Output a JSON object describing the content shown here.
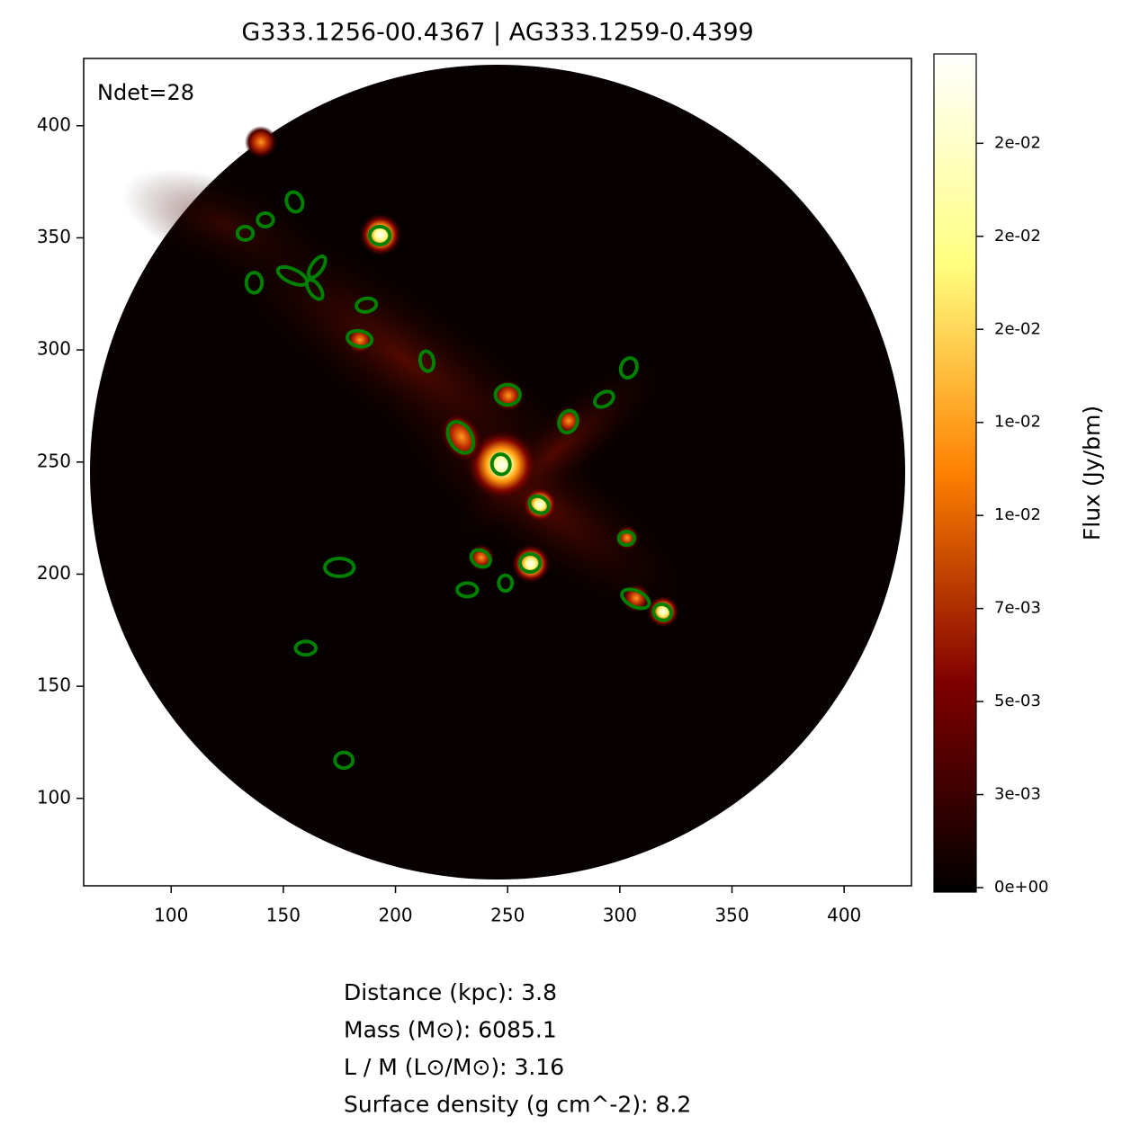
{
  "chart_data": {
    "type": "image",
    "title": "G333.1256-00.4367 | AG333.1259-0.4399",
    "annotation": "Ndet=28",
    "xlim": [
      61,
      430
    ],
    "ylim": [
      61,
      430
    ],
    "xticks": [
      100,
      150,
      200,
      250,
      300,
      350,
      400
    ],
    "yticks": [
      100,
      150,
      200,
      250,
      300,
      350,
      400
    ],
    "colorbar": {
      "label": "Flux (Jy/bm)",
      "lim": [
        -0.00012,
        0.0224
      ],
      "ticks": [
        {
          "value": 0,
          "label": "0e+00"
        },
        {
          "value": 0.0025,
          "label": "3e-03"
        },
        {
          "value": 0.005,
          "label": "5e-03"
        },
        {
          "value": 0.0075,
          "label": "7e-03"
        },
        {
          "value": 0.01,
          "label": "1e-02"
        },
        {
          "value": 0.0125,
          "label": "1e-02"
        },
        {
          "value": 0.015,
          "label": "2e-02"
        },
        {
          "value": 0.0175,
          "label": "2e-02"
        },
        {
          "value": 0.02,
          "label": "2e-02"
        }
      ]
    },
    "aperture_color": "#008000",
    "sources": [
      {
        "x": 155,
        "y": 366,
        "w": 7,
        "h": 9,
        "angle": 20
      },
      {
        "x": 142,
        "y": 358,
        "w": 7,
        "h": 6,
        "angle": 0
      },
      {
        "x": 133,
        "y": 352,
        "w": 7,
        "h": 6,
        "angle": 0
      },
      {
        "x": 193,
        "y": 351,
        "w": 9,
        "h": 8,
        "angle": 0
      },
      {
        "x": 137,
        "y": 330,
        "w": 7,
        "h": 9,
        "angle": 0
      },
      {
        "x": 154,
        "y": 333,
        "w": 14,
        "h": 6,
        "angle": -25
      },
      {
        "x": 165,
        "y": 337,
        "w": 11,
        "h": 5,
        "angle": 55
      },
      {
        "x": 164,
        "y": 327,
        "w": 10,
        "h": 5,
        "angle": -55
      },
      {
        "x": 187,
        "y": 320,
        "w": 9,
        "h": 6,
        "angle": 10
      },
      {
        "x": 184,
        "y": 305,
        "w": 11,
        "h": 7,
        "angle": -10
      },
      {
        "x": 214,
        "y": 295,
        "w": 6,
        "h": 9,
        "angle": 10
      },
      {
        "x": 304,
        "y": 292,
        "w": 7,
        "h": 9,
        "angle": -20
      },
      {
        "x": 293,
        "y": 278,
        "w": 9,
        "h": 6,
        "angle": 30
      },
      {
        "x": 250,
        "y": 280,
        "w": 11,
        "h": 9,
        "angle": 0
      },
      {
        "x": 277,
        "y": 268,
        "w": 8,
        "h": 10,
        "angle": -20
      },
      {
        "x": 229,
        "y": 261,
        "w": 10,
        "h": 15,
        "angle": 30
      },
      {
        "x": 247,
        "y": 249,
        "w": 8,
        "h": 9,
        "angle": 10
      },
      {
        "x": 264,
        "y": 231,
        "w": 9,
        "h": 7,
        "angle": -30
      },
      {
        "x": 303,
        "y": 216,
        "w": 7,
        "h": 6,
        "angle": 0
      },
      {
        "x": 175,
        "y": 203,
        "w": 13,
        "h": 8,
        "angle": 0
      },
      {
        "x": 238,
        "y": 207,
        "w": 9,
        "h": 7,
        "angle": -30
      },
      {
        "x": 260,
        "y": 205,
        "w": 9,
        "h": 8,
        "angle": 0
      },
      {
        "x": 232,
        "y": 193,
        "w": 9,
        "h": 6,
        "angle": 0
      },
      {
        "x": 249,
        "y": 196,
        "w": 6,
        "h": 7,
        "angle": 0
      },
      {
        "x": 307,
        "y": 189,
        "w": 13,
        "h": 7,
        "angle": -25
      },
      {
        "x": 319,
        "y": 183,
        "w": 8,
        "h": 7,
        "angle": -25
      },
      {
        "x": 160,
        "y": 167,
        "w": 9,
        "h": 6,
        "angle": 0
      },
      {
        "x": 177,
        "y": 117,
        "w": 8,
        "h": 7,
        "angle": 0
      }
    ],
    "info": [
      "Distance (kpc): 3.8",
      "Mass (M⊙): 6085.1",
      "L / M (L⊙/M⊙): 3.16",
      "Surface density (g cm^-2): 8.2"
    ]
  }
}
